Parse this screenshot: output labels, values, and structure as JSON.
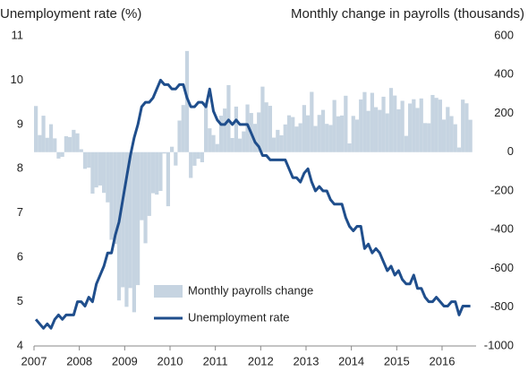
{
  "chart_data": {
    "type": "combo",
    "y_label": "Unemployment rate (%)",
    "y2_label": "Monthly change in payrolls (thousands)",
    "categories": [
      "2007",
      null,
      null,
      null,
      null,
      null,
      null,
      null,
      null,
      null,
      null,
      null,
      "2008",
      null,
      null,
      null,
      null,
      null,
      null,
      null,
      null,
      null,
      null,
      null,
      "2009",
      null,
      null,
      null,
      null,
      null,
      null,
      null,
      null,
      null,
      null,
      null,
      "2010",
      null,
      null,
      null,
      null,
      null,
      null,
      null,
      null,
      null,
      null,
      null,
      "2011",
      null,
      null,
      null,
      null,
      null,
      null,
      null,
      null,
      null,
      null,
      null,
      "2012",
      null,
      null,
      null,
      null,
      null,
      null,
      null,
      null,
      null,
      null,
      null,
      "2013",
      null,
      null,
      null,
      null,
      null,
      null,
      null,
      null,
      null,
      null,
      null,
      "2014",
      null,
      null,
      null,
      null,
      null,
      null,
      null,
      null,
      null,
      null,
      null,
      "2015",
      null,
      null,
      null,
      null,
      null,
      null,
      null,
      null,
      null,
      null,
      null,
      "2016",
      null,
      null,
      null,
      null,
      null,
      null,
      null
    ],
    "series": [
      {
        "name": "Monthly payrolls change",
        "type": "bar",
        "axis": "y2",
        "color": "#c6d4e1",
        "values": [
          238,
          88,
          188,
          74,
          144,
          71,
          -33,
          -24,
          82,
          78,
          115,
          97,
          15,
          -86,
          -80,
          -214,
          -182,
          -172,
          -210,
          -259,
          -452,
          -474,
          -765,
          -697,
          -798,
          -701,
          -826,
          -686,
          -351,
          -470,
          -329,
          -212,
          -219,
          -200,
          -7,
          -279,
          28,
          -69,
          163,
          243,
          522,
          -133,
          -70,
          -34,
          -52,
          257,
          123,
          88,
          42,
          188,
          225,
          346,
          73,
          235,
          70,
          107,
          246,
          202,
          146,
          205,
          338,
          257,
          239,
          75,
          115,
          87,
          143,
          190,
          181,
          132,
          149,
          243,
          190,
          311,
          135,
          192,
          218,
          146,
          140,
          269,
          185,
          189,
          291,
          45,
          187,
          168,
          272,
          310,
          213,
          306,
          232,
          218,
          286,
          200,
          331,
          292,
          221,
          265,
          84,
          251,
          273,
          228,
          277,
          150,
          149,
          295,
          280,
          271,
          168,
          233,
          186,
          144,
          24,
          271,
          252,
          167
        ]
      },
      {
        "name": "Unemployment rate",
        "type": "line",
        "color": "#1f4e8c",
        "values": [
          4.6,
          4.5,
          4.4,
          4.5,
          4.4,
          4.6,
          4.7,
          4.6,
          4.7,
          4.7,
          4.7,
          5.0,
          5.0,
          4.9,
          5.1,
          5.0,
          5.4,
          5.6,
          5.8,
          6.1,
          6.1,
          6.5,
          6.8,
          7.3,
          7.8,
          8.3,
          8.7,
          9.0,
          9.4,
          9.5,
          9.5,
          9.6,
          9.8,
          10.0,
          9.9,
          9.9,
          9.8,
          9.8,
          9.9,
          9.9,
          9.6,
          9.4,
          9.4,
          9.5,
          9.5,
          9.4,
          9.8,
          9.3,
          9.1,
          9.0,
          9.0,
          9.1,
          9.0,
          9.1,
          9.0,
          9.0,
          9.0,
          8.8,
          8.6,
          8.5,
          8.3,
          8.3,
          8.2,
          8.2,
          8.2,
          8.2,
          8.2,
          8.0,
          7.8,
          7.8,
          7.7,
          7.9,
          8.0,
          7.7,
          7.5,
          7.6,
          7.5,
          7.5,
          7.3,
          7.2,
          7.2,
          7.2,
          6.9,
          6.7,
          6.6,
          6.7,
          6.7,
          6.2,
          6.3,
          6.1,
          6.2,
          6.1,
          5.9,
          5.7,
          5.8,
          5.6,
          5.7,
          5.5,
          5.4,
          5.4,
          5.6,
          5.3,
          5.3,
          5.1,
          5.0,
          5.0,
          5.1,
          5.0,
          4.9,
          4.9,
          5.0,
          5.0,
          4.7,
          4.9,
          4.9,
          4.9
        ]
      }
    ],
    "ylim": [
      4,
      11
    ],
    "yticks": [
      4,
      5,
      6,
      7,
      8,
      9,
      10,
      11
    ],
    "y2lim": [
      -1000,
      600
    ],
    "y2ticks": [
      -1000,
      -800,
      -600,
      -400,
      -200,
      0,
      200,
      400,
      600
    ],
    "legend_position": "lower center"
  }
}
